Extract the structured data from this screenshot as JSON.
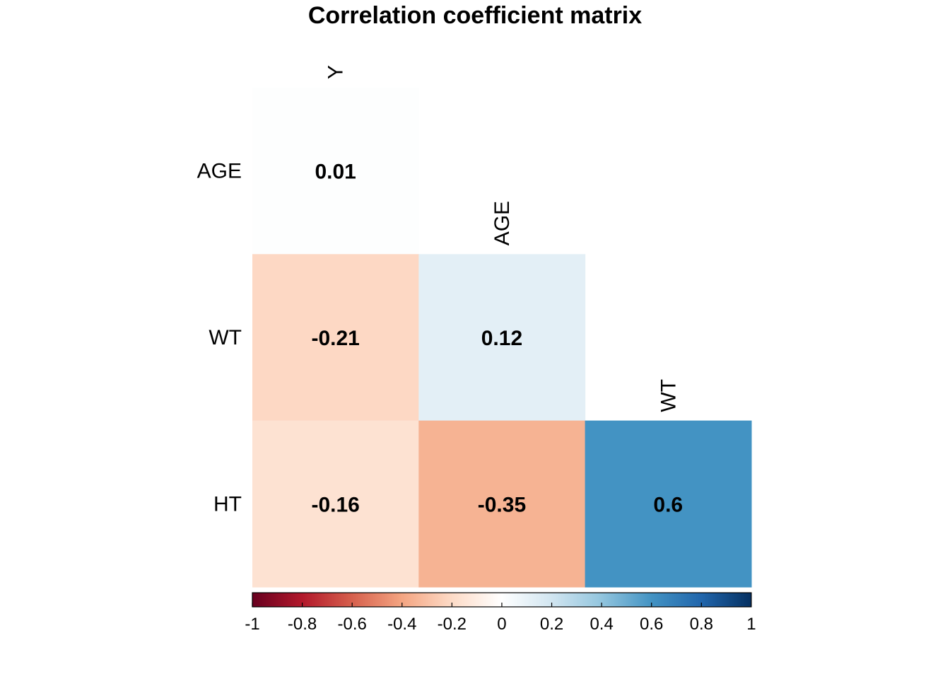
{
  "chart_data": {
    "type": "heatmap",
    "title": "Correlation coefficient matrix",
    "variables": [
      "Y",
      "AGE",
      "WT",
      "HT"
    ],
    "row_labels": [
      "AGE",
      "WT",
      "HT"
    ],
    "col_labels": [
      "Y",
      "AGE",
      "WT"
    ],
    "matrix": [
      [
        0.01,
        null,
        null
      ],
      [
        -0.21,
        0.12,
        null
      ],
      [
        -0.16,
        -0.35,
        0.6
      ]
    ],
    "cell_labels": [
      [
        "0.01",
        "",
        ""
      ],
      [
        "-0.21",
        "0.12",
        ""
      ],
      [
        "-0.16",
        "-0.35",
        "0.6"
      ]
    ],
    "colorbar": {
      "range": [
        -1,
        1
      ],
      "ticks": [
        -1,
        -0.8,
        -0.6,
        -0.4,
        -0.2,
        0,
        0.2,
        0.4,
        0.6,
        0.8,
        1
      ],
      "tick_labels": [
        "-1",
        "-0.8",
        "-0.6",
        "-0.4",
        "-0.2",
        "0",
        "0.2",
        "0.4",
        "0.6",
        "0.8",
        "1"
      ],
      "placement": "bottom",
      "palette": [
        "#67001F",
        "#B2182B",
        "#D6604D",
        "#F4A582",
        "#FDDBC7",
        "#FFFFFF",
        "#D1E5F0",
        "#92C5DE",
        "#4393C3",
        "#2166AC",
        "#053061"
      ]
    },
    "layout": "lower-triangle",
    "grid": false
  }
}
